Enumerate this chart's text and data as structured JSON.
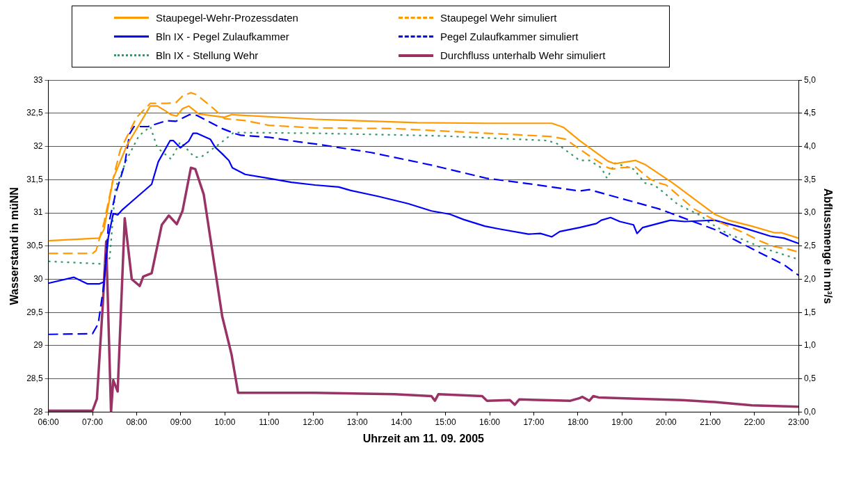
{
  "chart_data": {
    "type": "line",
    "xlabel": "Uhrzeit am 11. 09. 2005",
    "ylabel": "Wasserstand in müNN",
    "y2label": "Abflussmenge in m³/s",
    "legend": "top",
    "grid": "y",
    "xlim": [
      6,
      23
    ],
    "xticks": [
      {
        "value": 6,
        "label": "06:00"
      },
      {
        "value": 7,
        "label": "07:00"
      },
      {
        "value": 8,
        "label": "08:00"
      },
      {
        "value": 9,
        "label": "09:00"
      },
      {
        "value": 10,
        "label": "10:00"
      },
      {
        "value": 11,
        "label": "11:00"
      },
      {
        "value": 12,
        "label": "12:00"
      },
      {
        "value": 13,
        "label": "13:00"
      },
      {
        "value": 14,
        "label": "14:00"
      },
      {
        "value": 15,
        "label": "15:00"
      },
      {
        "value": 16,
        "label": "16:00"
      },
      {
        "value": 17,
        "label": "17:00"
      },
      {
        "value": 18,
        "label": "18:00"
      },
      {
        "value": 19,
        "label": "19:00"
      },
      {
        "value": 20,
        "label": "20:00"
      },
      {
        "value": 21,
        "label": "21:00"
      },
      {
        "value": 22,
        "label": "22:00"
      },
      {
        "value": 23,
        "label": "23:00"
      }
    ],
    "ylim": [
      28,
      33
    ],
    "yticks": [
      28,
      {
        "value": 28.5,
        "label": "28,5"
      },
      29,
      {
        "value": 29.5,
        "label": "29,5"
      },
      30,
      {
        "value": 30.5,
        "label": "30,5"
      },
      31,
      {
        "value": 31.5,
        "label": "31,5"
      },
      32,
      {
        "value": 32.5,
        "label": "32,5"
      },
      33
    ],
    "y2lim": [
      0,
      5
    ],
    "y2ticks": [
      {
        "value": 0,
        "label": "0,0"
      },
      {
        "value": 0.5,
        "label": "0,5"
      },
      {
        "value": 1,
        "label": "1,0"
      },
      {
        "value": 1.5,
        "label": "1,5"
      },
      {
        "value": 2,
        "label": "2,0"
      },
      {
        "value": 2.5,
        "label": "2,5"
      },
      {
        "value": 3,
        "label": "3,0"
      },
      {
        "value": 3.5,
        "label": "3,5"
      },
      {
        "value": 4,
        "label": "4,0"
      },
      {
        "value": 4.5,
        "label": "4,5"
      },
      {
        "value": 5,
        "label": "5,0"
      }
    ],
    "series": [
      {
        "name": "Staupegel-Wehr-Prozessdaten",
        "color": "#ff9900",
        "line_style": "solid",
        "x": [
          6,
          7.15,
          7.26,
          7.47,
          7.78,
          8.31,
          8.47,
          8.62,
          8.78,
          8.91,
          9.04,
          9.18,
          9.41,
          9.99,
          10.15,
          12.04,
          14.36,
          15.94,
          17.41,
          17.67,
          18.04,
          18.68,
          18.84,
          19.31,
          19.52,
          20.15,
          21.1,
          21.41,
          21.94,
          22.46,
          22.62,
          23
        ],
        "values": [
          30.58,
          30.62,
          30.75,
          31.52,
          32.02,
          32.61,
          32.61,
          32.55,
          32.48,
          32.46,
          32.57,
          32.61,
          32.49,
          32.44,
          32.48,
          32.41,
          32.36,
          32.35,
          32.35,
          32.29,
          32.09,
          31.78,
          31.74,
          31.79,
          31.73,
          31.45,
          30.98,
          30.89,
          30.8,
          30.7,
          30.7,
          30.62
        ]
      },
      {
        "name": "Staupegel Wehr simuliert",
        "color": "#ff9900",
        "line_style": "dashed",
        "x": [
          6,
          7,
          7.08,
          7.26,
          7.47,
          7.63,
          8,
          8.31,
          8.68,
          8.89,
          9.04,
          9.23,
          9.36,
          9.73,
          9.99,
          10.46,
          10.99,
          12.04,
          13.84,
          15.94,
          17.41,
          17.72,
          18.04,
          18.26,
          18.68,
          18.79,
          18.95,
          19.31,
          19.63,
          19.84,
          20,
          20.63,
          21.1,
          21.73,
          22.15,
          22.46,
          22.73,
          23
        ],
        "values": [
          30.39,
          30.39,
          30.43,
          30.85,
          31.52,
          31.95,
          32.44,
          32.65,
          32.65,
          32.66,
          32.76,
          32.81,
          32.78,
          32.58,
          32.42,
          32.39,
          32.32,
          32.28,
          32.27,
          32.2,
          32.15,
          32.11,
          31.96,
          31.86,
          31.68,
          31.66,
          31.68,
          31.69,
          31.51,
          31.45,
          31.42,
          31.06,
          30.89,
          30.71,
          30.57,
          30.49,
          30.46,
          30.41
        ]
      },
      {
        "name": "Bln IX - Pegel Zulaufkammer",
        "color": "#0000ff",
        "line_style": "solid",
        "x": [
          6,
          6.58,
          6.89,
          7.15,
          7.26,
          7.36,
          7.47,
          7.57,
          7.68,
          7.94,
          8.34,
          8.49,
          8.76,
          8.83,
          8.99,
          9.18,
          9.28,
          9.36,
          9.67,
          9.78,
          9.94,
          10.09,
          10.17,
          10.46,
          10.99,
          11.51,
          12.04,
          12.58,
          12.84,
          13.47,
          14.15,
          14.68,
          15.1,
          15.41,
          15.89,
          16.2,
          16.88,
          17.15,
          17.41,
          17.59,
          18.04,
          18.42,
          18.53,
          18.74,
          18.95,
          19.26,
          19.34,
          19.47,
          20.1,
          20.42,
          21.1,
          21.73,
          22.36,
          22.67,
          23
        ],
        "values": [
          29.94,
          30.03,
          29.93,
          29.93,
          29.96,
          30.64,
          30.99,
          30.97,
          31.05,
          31.2,
          31.43,
          31.77,
          32.09,
          32.09,
          31.98,
          32.08,
          32.2,
          32.2,
          32.11,
          31.99,
          31.89,
          31.79,
          31.68,
          31.58,
          31.52,
          31.46,
          31.42,
          31.39,
          31.34,
          31.25,
          31.14,
          31.03,
          30.98,
          30.9,
          30.8,
          30.76,
          30.68,
          30.69,
          30.64,
          30.72,
          30.78,
          30.84,
          30.89,
          30.93,
          30.87,
          30.82,
          30.69,
          30.78,
          30.89,
          30.87,
          30.89,
          30.78,
          30.65,
          30.62,
          30.54
        ]
      },
      {
        "name": "Pegel Zulaufkammer simuliert",
        "color": "#0000ff",
        "line_style": "dashed",
        "x": [
          6,
          7,
          7.13,
          7.26,
          7.36,
          7.52,
          7.73,
          7.84,
          7.94,
          8.26,
          8.68,
          8.89,
          9.2,
          9.36,
          9.94,
          10.25,
          10.36,
          10.99,
          11.67,
          12.04,
          13.31,
          14.68,
          15.94,
          16.99,
          18.04,
          18.26,
          19.84,
          21.1,
          22.15,
          22.67,
          23
        ],
        "values": [
          29.17,
          29.18,
          29.33,
          29.93,
          30.82,
          31.28,
          31.73,
          32.19,
          32.3,
          32.3,
          32.39,
          32.38,
          32.48,
          32.47,
          32.27,
          32.19,
          32.17,
          32.14,
          32.07,
          32.04,
          31.91,
          31.72,
          31.52,
          31.43,
          31.33,
          31.35,
          31.06,
          30.75,
          30.39,
          30.22,
          30.06
        ]
      },
      {
        "name": "Bln IX - Stellung Wehr",
        "color": "#339966",
        "line_style": "dotted",
        "x": [
          6,
          7.26,
          7.39,
          7.52,
          7.78,
          8.05,
          8.31,
          8.47,
          8.78,
          8.99,
          9.31,
          9.46,
          9.88,
          10.2,
          12.04,
          14.89,
          17.3,
          17.51,
          18.04,
          18.26,
          18.53,
          18.66,
          18.84,
          19.26,
          19.52,
          19.73,
          19.94,
          20.26,
          20.78,
          20.99,
          21.41,
          21.73,
          22.15,
          23
        ],
        "values": [
          30.27,
          30.23,
          30.32,
          31.38,
          31.81,
          32.16,
          32.3,
          31.98,
          31.81,
          32.07,
          31.84,
          31.84,
          32.04,
          32.21,
          32.2,
          32.16,
          32.09,
          32.05,
          31.79,
          31.79,
          31.68,
          31.52,
          31.75,
          31.66,
          31.45,
          31.42,
          31.31,
          31.13,
          30.96,
          30.85,
          30.68,
          30.6,
          30.48,
          30.3
        ]
      },
      {
        "name": "Durchfluss unterhalb Wehr simuliert",
        "color": "#993366",
        "line_style": "solid",
        "axis": "y2",
        "x": [
          6,
          7,
          7.1,
          7.23,
          7.31,
          7.42,
          7.47,
          7.57,
          7.73,
          7.89,
          8.07,
          8.15,
          8.34,
          8.57,
          8.73,
          8.91,
          9.04,
          9.23,
          9.33,
          9.52,
          9.73,
          9.94,
          10.15,
          10.3,
          12.04,
          13.84,
          14.68,
          14.76,
          14.84,
          15.83,
          15.94,
          16.46,
          16.57,
          16.67,
          17.83,
          18.04,
          18.1,
          18.26,
          18.35,
          18.47,
          19.31,
          20.36,
          21.1,
          21.94,
          23
        ],
        "values": [
          0.02,
          0.02,
          0.2,
          1.58,
          2.57,
          0,
          0.48,
          0.31,
          2.92,
          2,
          1.9,
          2.04,
          2.09,
          2.82,
          2.96,
          2.83,
          3.03,
          3.68,
          3.66,
          3.28,
          2.36,
          1.44,
          0.87,
          0.29,
          0.29,
          0.27,
          0.24,
          0.17,
          0.27,
          0.24,
          0.17,
          0.18,
          0.11,
          0.19,
          0.17,
          0.21,
          0.23,
          0.17,
          0.24,
          0.22,
          0.2,
          0.18,
          0.15,
          0.1,
          0.08
        ]
      }
    ]
  }
}
